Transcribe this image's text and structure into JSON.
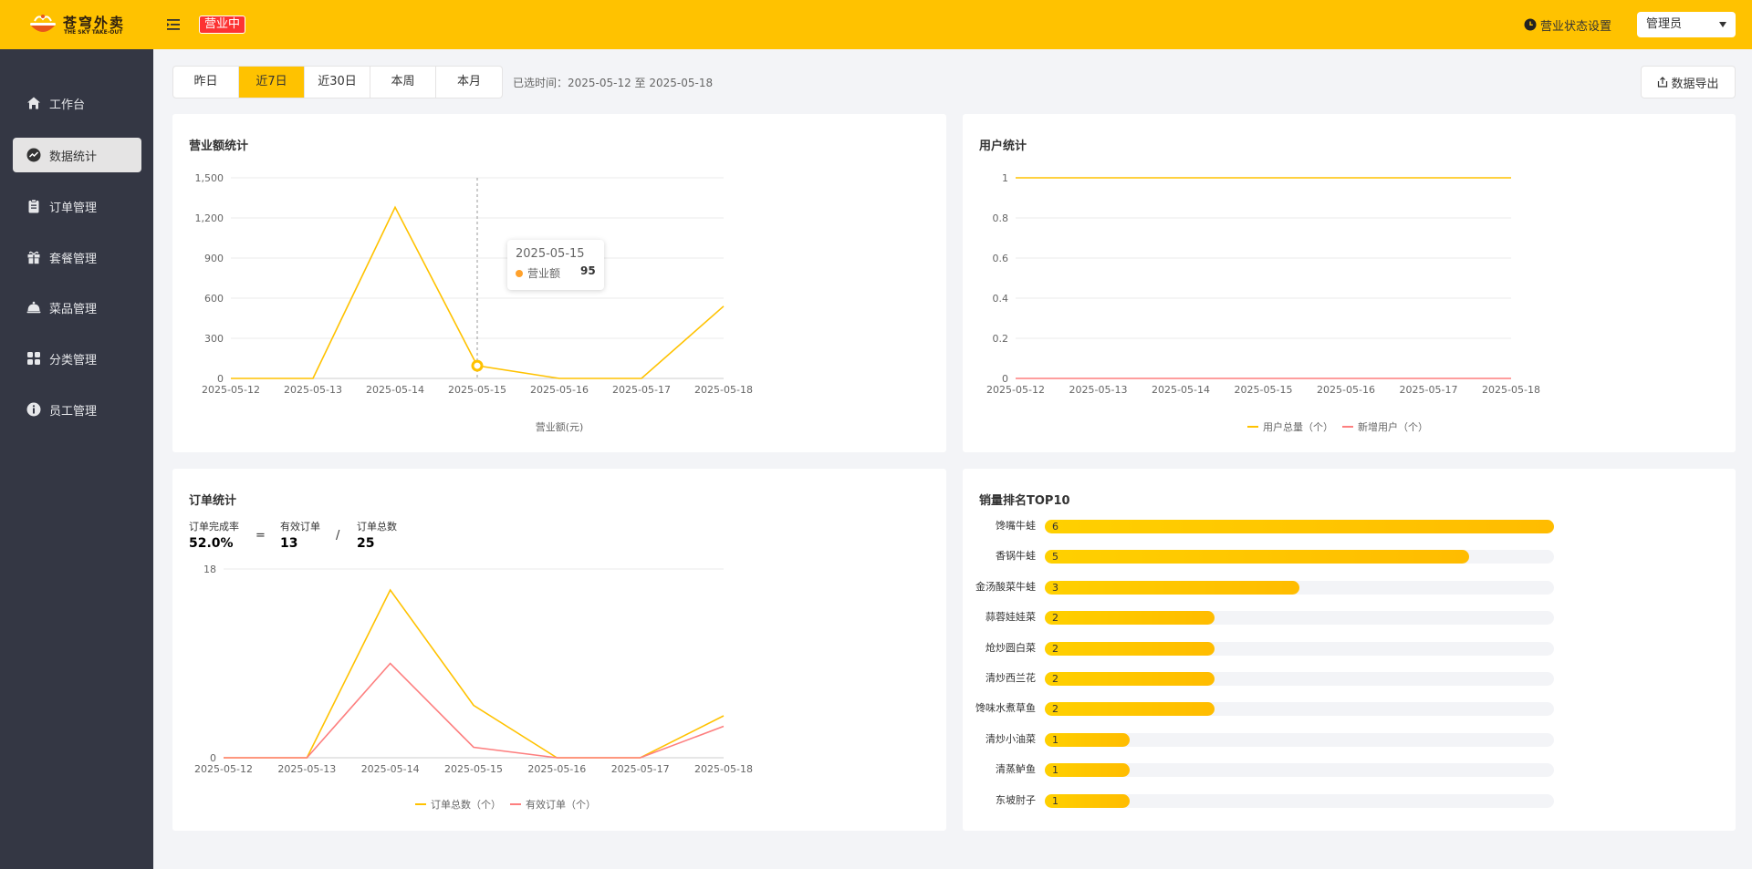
{
  "header": {
    "logo_cn": "苍穹外卖",
    "logo_en": "THE SKY TAKE-OUT",
    "status_badge": "营业中",
    "status_setting": "营业状态设置",
    "admin_label": "管理员"
  },
  "sidebar": {
    "items": [
      {
        "label": "工作台",
        "icon": "home-icon"
      },
      {
        "label": "数据统计",
        "icon": "trend-icon"
      },
      {
        "label": "订单管理",
        "icon": "clipboard-icon"
      },
      {
        "label": "套餐管理",
        "icon": "gift-icon"
      },
      {
        "label": "菜品管理",
        "icon": "dish-cover-icon"
      },
      {
        "label": "分类管理",
        "icon": "grid-icon"
      },
      {
        "label": "员工管理",
        "icon": "info-icon"
      }
    ],
    "active_index": 1
  },
  "toolbar": {
    "tabs": [
      "昨日",
      "近7日",
      "近30日",
      "本周",
      "本月"
    ],
    "active_tab": 1,
    "date_range": "已选时间：2025-05-12 至 2025-05-18",
    "export_label": "数据导出"
  },
  "colors": {
    "accent": "#ffc200",
    "badge_red": "#fd3333",
    "line_red": "#fd7f7f",
    "tooltip_dot": "#ffa12b"
  },
  "revenue": {
    "title": "营业额统计",
    "tooltip": {
      "date": "2025-05-15",
      "label": "营业额",
      "value": "95"
    }
  },
  "users": {
    "title": "用户统计"
  },
  "orders": {
    "title": "订单统计",
    "completion_label": "订单完成率",
    "completion_value": "52.0%",
    "valid_label": "有效订单",
    "valid_value": "13",
    "total_label": "订单总数",
    "total_value": "25",
    "op_equals": "=",
    "op_divide": "/"
  },
  "top10": {
    "title": "销量排名TOP10"
  },
  "chart_data": [
    {
      "type": "line",
      "title": "营业额统计",
      "categories": [
        "2025-05-12",
        "2025-05-13",
        "2025-05-14",
        "2025-05-15",
        "2025-05-16",
        "2025-05-17",
        "2025-05-18"
      ],
      "series": [
        {
          "name": "营业额(元)",
          "values": [
            0,
            0,
            1280,
            95,
            0,
            0,
            540
          ]
        }
      ],
      "yticks": [
        "0",
        "300",
        "600",
        "900",
        "1,200",
        "1,500"
      ],
      "ylim": [
        0,
        1500
      ],
      "legend": "营业额(元)"
    },
    {
      "type": "line",
      "title": "用户统计",
      "categories": [
        "2025-05-12",
        "2025-05-13",
        "2025-05-14",
        "2025-05-15",
        "2025-05-16",
        "2025-05-17",
        "2025-05-18"
      ],
      "series": [
        {
          "name": "用户总量（个）",
          "values": [
            1,
            1,
            1,
            1,
            1,
            1,
            1
          ]
        },
        {
          "name": "新增用户（个）",
          "values": [
            0,
            0,
            0,
            0,
            0,
            0,
            0
          ]
        }
      ],
      "yticks": [
        "0",
        "0.2",
        "0.4",
        "0.6",
        "0.8",
        "1"
      ],
      "ylim": [
        0,
        1
      ]
    },
    {
      "type": "line",
      "title": "订单统计",
      "categories": [
        "2025-05-12",
        "2025-05-13",
        "2025-05-14",
        "2025-05-15",
        "2025-05-16",
        "2025-05-17",
        "2025-05-18"
      ],
      "series": [
        {
          "name": "订单总数（个）",
          "values": [
            0,
            0,
            16,
            5,
            0,
            0,
            4
          ]
        },
        {
          "name": "有效订单（个）",
          "values": [
            0,
            0,
            9,
            1,
            0,
            0,
            3
          ]
        }
      ],
      "yticks": [
        "0",
        "18"
      ],
      "ylim": [
        0,
        18
      ]
    },
    {
      "type": "bar",
      "title": "销量排名TOP10",
      "orientation": "horizontal",
      "categories": [
        "馋嘴牛蛙",
        "香锅牛蛙",
        "金汤酸菜牛蛙",
        "蒜蓉娃娃菜",
        "炝炒圆白菜",
        "清炒西兰花",
        "馋味水煮草鱼",
        "清炒小油菜",
        "清蒸鲈鱼",
        "东坡肘子"
      ],
      "values": [
        6,
        5,
        3,
        2,
        2,
        2,
        2,
        1,
        1,
        1
      ],
      "xlim": [
        0,
        6
      ]
    }
  ]
}
